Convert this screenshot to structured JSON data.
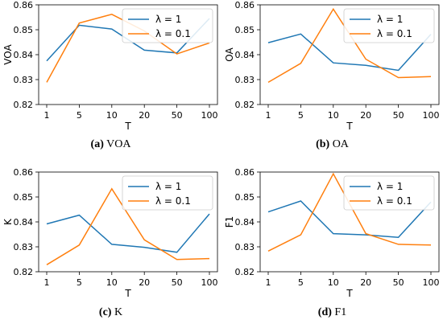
{
  "chart_data": [
    {
      "type": "line",
      "caption_label": "(a)",
      "caption_text": "VOA",
      "xlabel": "T",
      "ylabel": "VOA",
      "categories": [
        "1",
        "5",
        "10",
        "20",
        "50",
        "100"
      ],
      "ylim": [
        0.82,
        0.86
      ],
      "yticks": [
        "0.82",
        "0.83",
        "0.84",
        "0.85",
        "0.86"
      ],
      "legend_position": "top-right",
      "series": [
        {
          "name": "λ = 1",
          "color": "#1f77b4",
          "values": [
            0.8375,
            0.8518,
            0.8503,
            0.8418,
            0.8407,
            0.8545
          ]
        },
        {
          "name": "λ = 0.1",
          "color": "#ff7f0e",
          "values": [
            0.8289,
            0.8527,
            0.8562,
            0.8495,
            0.8403,
            0.8447
          ]
        }
      ]
    },
    {
      "type": "line",
      "caption_label": "(b)",
      "caption_text": "OA",
      "xlabel": "T",
      "ylabel": "OA",
      "categories": [
        "1",
        "5",
        "10",
        "20",
        "50",
        "100"
      ],
      "ylim": [
        0.82,
        0.86
      ],
      "yticks": [
        "0.82",
        "0.83",
        "0.84",
        "0.85",
        "0.86"
      ],
      "legend_position": "top-right",
      "series": [
        {
          "name": "λ = 1",
          "color": "#1f77b4",
          "values": [
            0.8448,
            0.8483,
            0.8367,
            0.8357,
            0.8337,
            0.8482
          ]
        },
        {
          "name": "λ = 0.1",
          "color": "#ff7f0e",
          "values": [
            0.8289,
            0.8365,
            0.8583,
            0.8382,
            0.8308,
            0.8312
          ]
        }
      ]
    },
    {
      "type": "line",
      "caption_label": "(c)",
      "caption_text": "K",
      "xlabel": "T",
      "ylabel": "K",
      "categories": [
        "1",
        "5",
        "10",
        "20",
        "50",
        "100"
      ],
      "ylim": [
        0.82,
        0.86
      ],
      "yticks": [
        "0.82",
        "0.83",
        "0.84",
        "0.85",
        "0.86"
      ],
      "legend_position": "top-right",
      "series": [
        {
          "name": "λ = 1",
          "color": "#1f77b4",
          "values": [
            0.8392,
            0.8427,
            0.831,
            0.8298,
            0.8278,
            0.8432
          ]
        },
        {
          "name": "λ = 0.1",
          "color": "#ff7f0e",
          "values": [
            0.8228,
            0.8307,
            0.8533,
            0.8328,
            0.8249,
            0.8253
          ]
        }
      ]
    },
    {
      "type": "line",
      "caption_label": "(d)",
      "caption_text": "F1",
      "xlabel": "T",
      "ylabel": "F1",
      "categories": [
        "1",
        "5",
        "10",
        "20",
        "50",
        "100"
      ],
      "ylim": [
        0.82,
        0.86
      ],
      "yticks": [
        "0.82",
        "0.83",
        "0.84",
        "0.85",
        "0.86"
      ],
      "legend_position": "top-right",
      "series": [
        {
          "name": "λ = 1",
          "color": "#1f77b4",
          "values": [
            0.844,
            0.8484,
            0.8353,
            0.8348,
            0.8338,
            0.848
          ]
        },
        {
          "name": "λ = 0.1",
          "color": "#ff7f0e",
          "values": [
            0.8283,
            0.8348,
            0.8593,
            0.8353,
            0.831,
            0.8307
          ]
        }
      ]
    }
  ]
}
